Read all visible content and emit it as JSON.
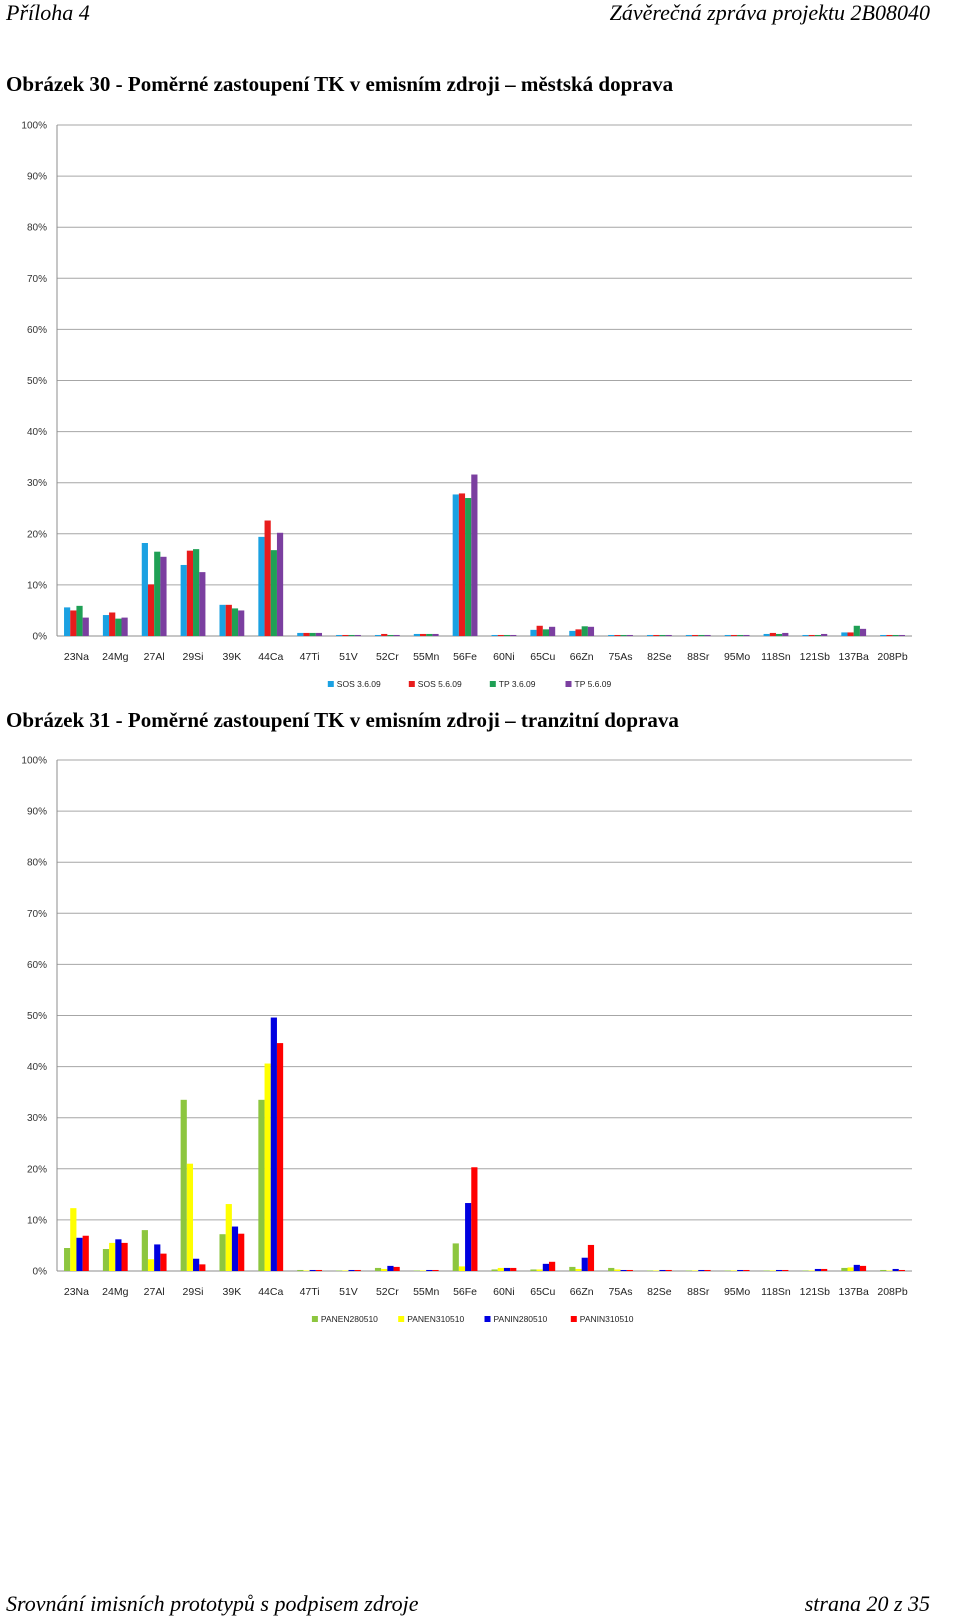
{
  "header": {
    "left": "Příloha 4",
    "right": "Závěrečná zpráva projektu 2B08040"
  },
  "captions": [
    "Obrázek 30 - Poměrné zastoupení TK v emisním zdroji – městská doprava",
    "Obrázek 31 - Poměrné zastoupení TK v emisním zdroji – tranzitní doprava"
  ],
  "footer": {
    "left": "Srovnání imisních prototypů s podpisem zdroje",
    "right": "strana 20 z 35"
  },
  "chart_data": [
    {
      "type": "bar",
      "title": "",
      "xlabel": "",
      "ylabel": "",
      "ylim": [
        0,
        100
      ],
      "yticks": [
        "0%",
        "10%",
        "20%",
        "30%",
        "40%",
        "50%",
        "60%",
        "70%",
        "80%",
        "90%",
        "100%"
      ],
      "grid": true,
      "legend_position": "bottom",
      "categories": [
        "23Na",
        "24Mg",
        "27Al",
        "29Si",
        "39K",
        "44Ca",
        "47Ti",
        "51V",
        "52Cr",
        "55Mn",
        "56Fe",
        "60Ni",
        "65Cu",
        "66Zn",
        "75As",
        "82Se",
        "88Sr",
        "95Mo",
        "118Sn",
        "121Sb",
        "137Ba",
        "208Pb"
      ],
      "series": [
        {
          "name": "SOS 3.6.09",
          "color": "#1ba1e2",
          "values": [
            5.6,
            4.1,
            18.2,
            13.9,
            6.1,
            19.4,
            0.6,
            0.2,
            0.2,
            0.4,
            27.7,
            0.2,
            1.2,
            1.0,
            0.2,
            0.2,
            0.2,
            0.2,
            0.4,
            0.2,
            0.7,
            0.2
          ]
        },
        {
          "name": "SOS 5.6.09",
          "color": "#e81c1c",
          "values": [
            5.0,
            4.6,
            10.1,
            16.7,
            6.1,
            22.6,
            0.6,
            0.2,
            0.4,
            0.4,
            27.9,
            0.2,
            2.0,
            1.3,
            0.2,
            0.2,
            0.2,
            0.2,
            0.6,
            0.2,
            0.7,
            0.2
          ]
        },
        {
          "name": "TP 3.6.09",
          "color": "#1fa055",
          "values": [
            5.9,
            3.4,
            16.5,
            17.0,
            5.4,
            16.8,
            0.6,
            0.2,
            0.2,
            0.4,
            27.0,
            0.2,
            1.3,
            1.9,
            0.2,
            0.2,
            0.2,
            0.2,
            0.4,
            0.2,
            2.0,
            0.2
          ]
        },
        {
          "name": "TP 5.6.09",
          "color": "#7b3fa0",
          "values": [
            3.6,
            3.6,
            15.5,
            12.5,
            5.0,
            20.2,
            0.6,
            0.2,
            0.2,
            0.4,
            31.6,
            0.2,
            1.8,
            1.8,
            0.2,
            0.2,
            0.2,
            0.2,
            0.6,
            0.4,
            1.4,
            0.2
          ]
        }
      ]
    },
    {
      "type": "bar",
      "title": "",
      "xlabel": "",
      "ylabel": "",
      "ylim": [
        0,
        100
      ],
      "yticks": [
        "0%",
        "10%",
        "20%",
        "30%",
        "40%",
        "50%",
        "60%",
        "70%",
        "80%",
        "90%",
        "100%"
      ],
      "grid": true,
      "legend_position": "bottom",
      "categories": [
        "23Na",
        "24Mg",
        "27Al",
        "29Si",
        "39K",
        "44Ca",
        "47Ti",
        "51V",
        "52Cr",
        "55Mn",
        "56Fe",
        "60Ni",
        "65Cu",
        "66Zn",
        "75As",
        "82Se",
        "88Sr",
        "95Mo",
        "118Sn",
        "121Sb",
        "137Ba",
        "208Pb"
      ],
      "series": [
        {
          "name": "PANEN280510",
          "color": "#8dc63f",
          "values": [
            4.5,
            4.3,
            8.0,
            33.5,
            7.2,
            33.5,
            0.2,
            0.1,
            0.6,
            0.1,
            5.4,
            0.3,
            0.3,
            0.8,
            0.6,
            0.1,
            0.1,
            0.1,
            0.1,
            0.1,
            0.6,
            0.2
          ]
        },
        {
          "name": "PANEN310510",
          "color": "#ffff00",
          "values": [
            12.3,
            5.5,
            2.3,
            21.0,
            13.1,
            40.6,
            0.1,
            0.1,
            0.4,
            0.1,
            0.9,
            0.6,
            0.3,
            0.4,
            0.3,
            0.1,
            0.1,
            0.1,
            0.1,
            0.1,
            0.7,
            0.1
          ]
        },
        {
          "name": "PANIN280510",
          "color": "#0000e0",
          "values": [
            6.5,
            6.2,
            5.2,
            2.4,
            8.7,
            49.6,
            0.2,
            0.2,
            1.0,
            0.2,
            13.3,
            0.6,
            1.4,
            2.6,
            0.2,
            0.2,
            0.2,
            0.2,
            0.2,
            0.4,
            1.2,
            0.4
          ]
        },
        {
          "name": "PANIN310510",
          "color": "#ff0000",
          "values": [
            6.9,
            5.5,
            3.4,
            1.3,
            7.3,
            44.6,
            0.2,
            0.2,
            0.8,
            0.2,
            20.3,
            0.6,
            1.8,
            5.1,
            0.2,
            0.2,
            0.2,
            0.2,
            0.2,
            0.4,
            1.0,
            0.2
          ]
        }
      ]
    }
  ]
}
